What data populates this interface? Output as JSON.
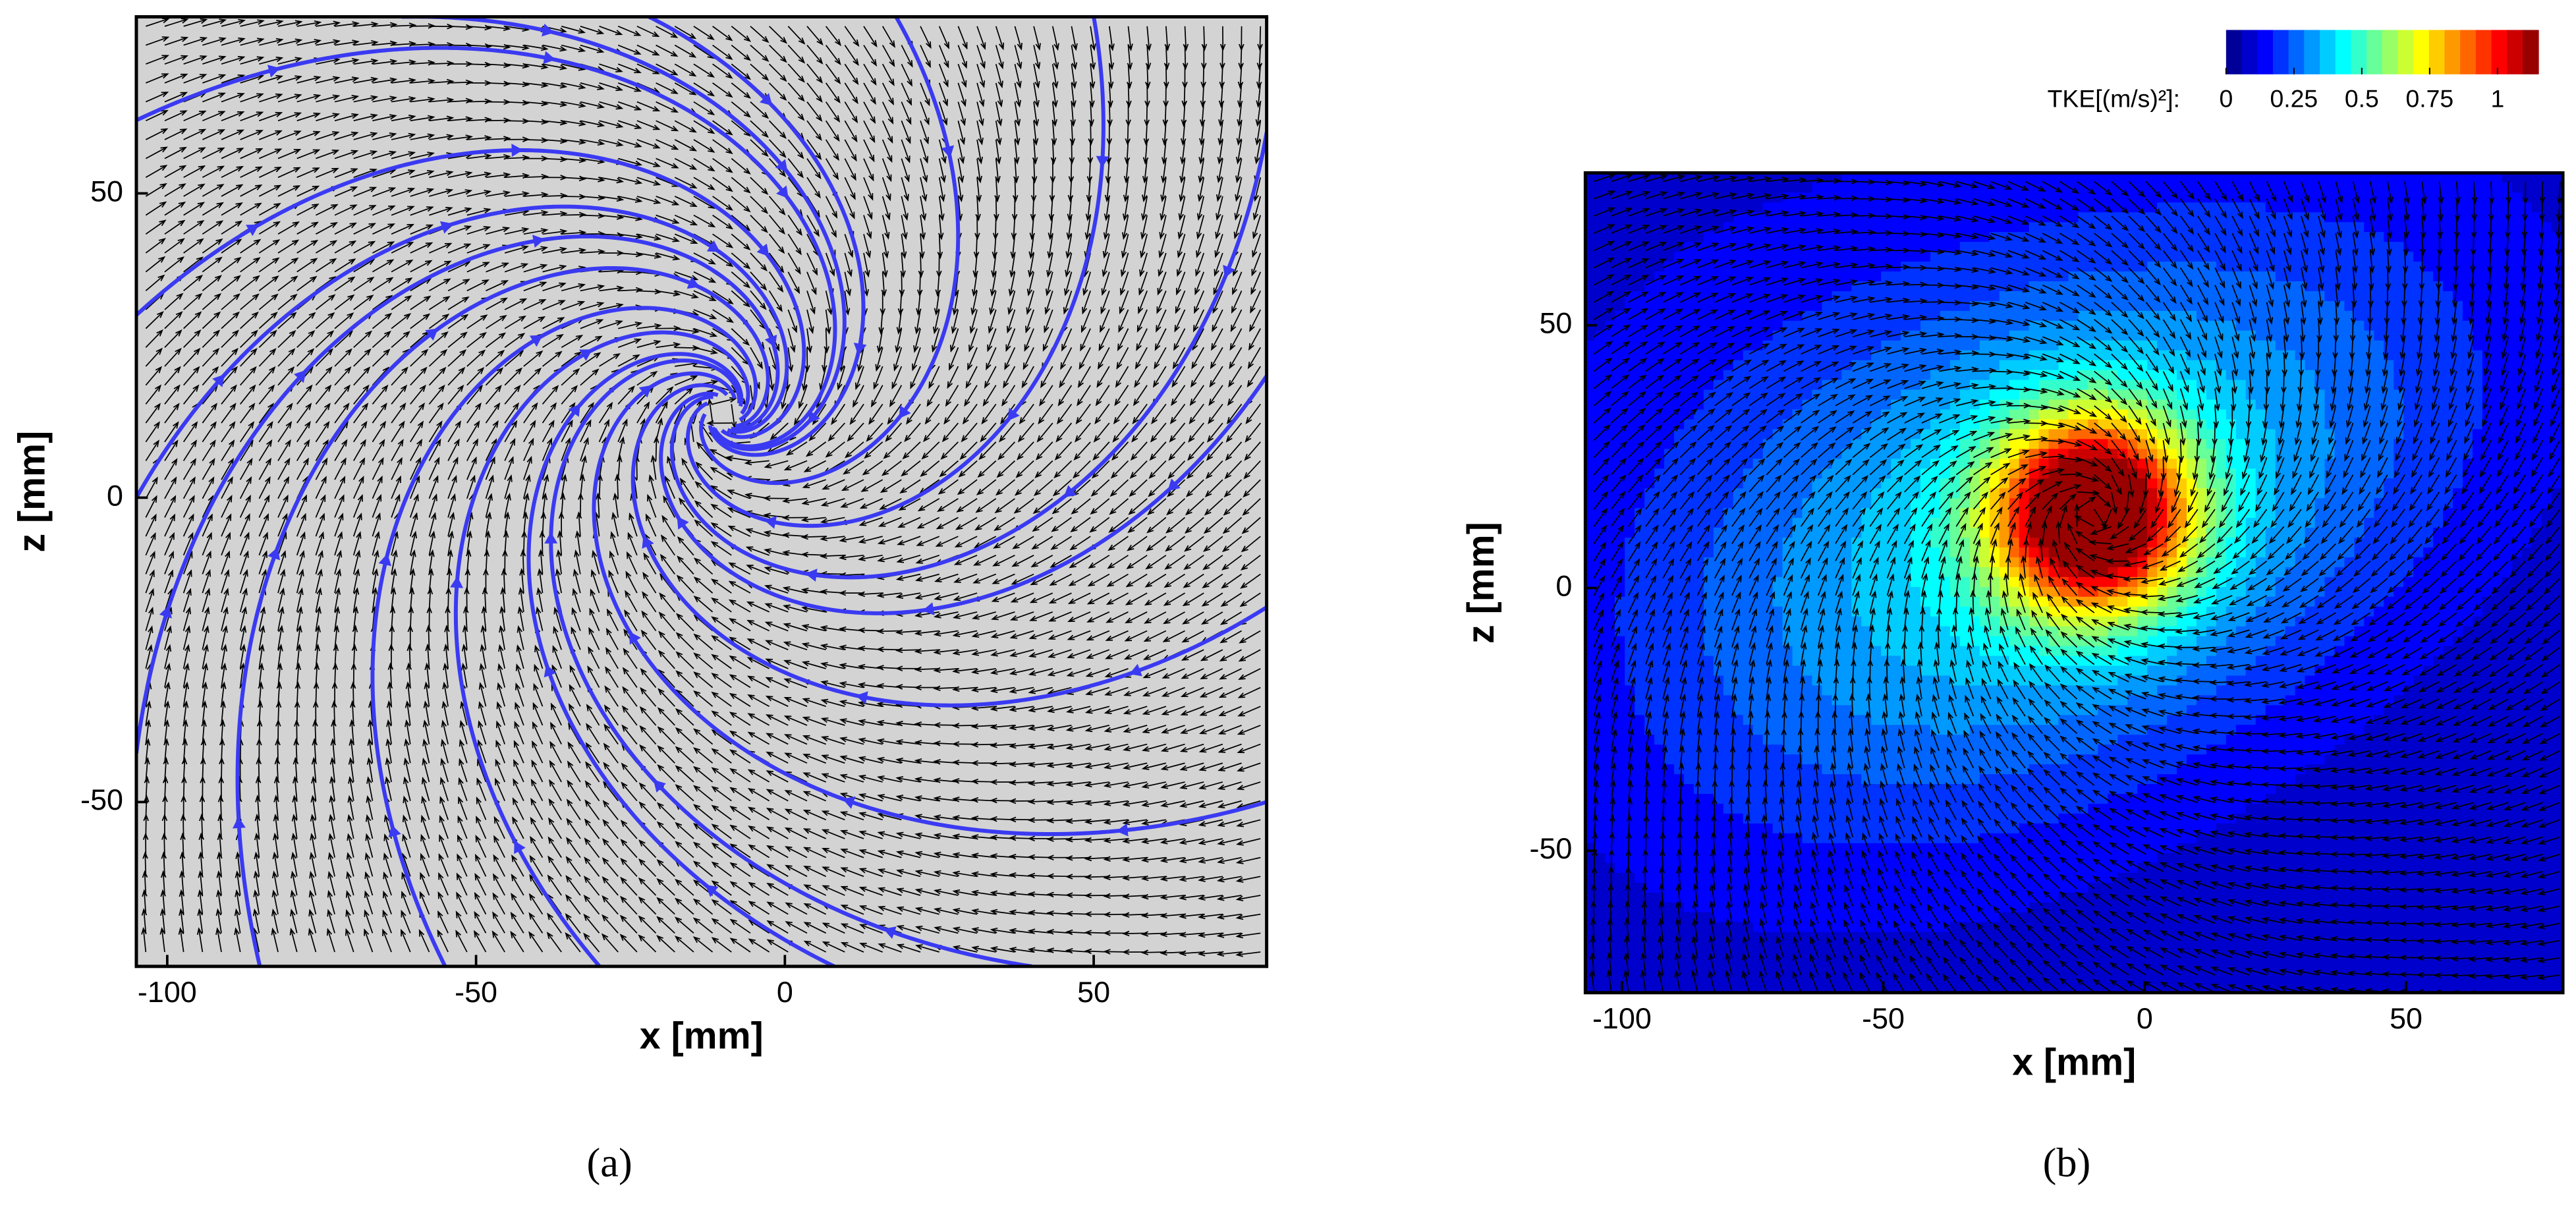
{
  "chart_data": [
    {
      "type": "vector-field",
      "xlabel": "x [mm]",
      "ylabel": "z [mm]",
      "xlim": [
        -105,
        78
      ],
      "ylim": [
        -77,
        79
      ],
      "xticks": [
        -100,
        -50,
        0,
        50
      ],
      "yticks": [
        -50,
        0,
        50
      ],
      "background": "#d3d3d3",
      "vector_color": "#000000",
      "streamline_color": "#3a3af2",
      "caption": "(a)"
    },
    {
      "type": "contour",
      "xlabel": "x [mm]",
      "ylabel": "z [mm]",
      "xlim": [
        -107,
        80
      ],
      "ylim": [
        -77,
        79
      ],
      "xticks": [
        -100,
        -50,
        0,
        50
      ],
      "yticks": [
        -50,
        0,
        50
      ],
      "vector_color": "#000000",
      "colormap": "jet",
      "levels": 20,
      "colorbar": {
        "label": "TKE[(m/s)²]:",
        "lim": [
          0,
          1.15
        ],
        "ticks": [
          0,
          0.25,
          0.5,
          0.75,
          1
        ]
      },
      "caption": "(b)"
    }
  ]
}
